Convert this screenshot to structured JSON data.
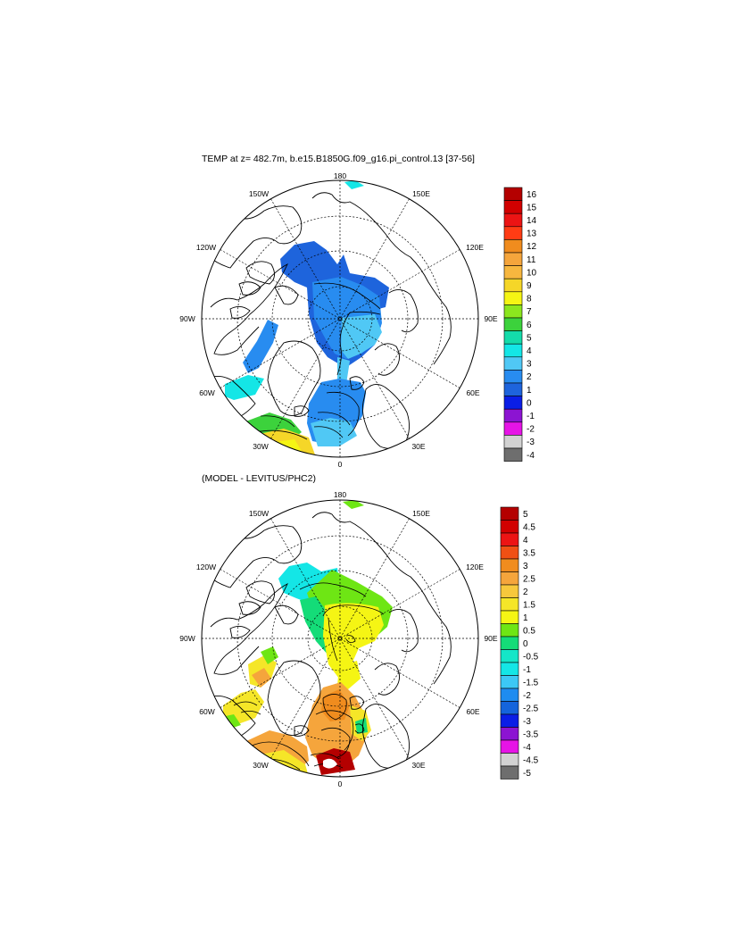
{
  "panels": [
    {
      "title": "TEMP at z= 482.7m, b.e15.B1850G.f09_g16.pi_control.13 [37-56]",
      "lon_labels": [
        "180",
        "150E",
        "120E",
        "90E",
        "60E",
        "30E",
        "0",
        "30W",
        "60W",
        "90W",
        "120W",
        "150W"
      ],
      "colorbar": {
        "labels": [
          "16",
          "15",
          "14",
          "13",
          "12",
          "11",
          "10",
          "9",
          "8",
          "7",
          "6",
          "5",
          "4",
          "3",
          "2",
          "1",
          "0",
          "-1",
          "-2",
          "-3",
          "-4"
        ],
        "colors": [
          "#b40000",
          "#d20000",
          "#ec1414",
          "#ff3c14",
          "#f08c1e",
          "#f5a53c",
          "#f7b73f",
          "#f5d628",
          "#f5f514",
          "#8ce61e",
          "#3cd23c",
          "#14dcaa",
          "#14e6e6",
          "#50c8f5",
          "#288cf0",
          "#1e64dc",
          "#0a1ee6",
          "#8c14d2",
          "#e614e6",
          "#d2d2d2",
          "#6e6e6e"
        ]
      }
    },
    {
      "title": "(MODEL - LEVITUS/PHC2)",
      "lon_labels": [
        "180",
        "150E",
        "120E",
        "90E",
        "60E",
        "30E",
        "0",
        "30W",
        "60W",
        "90W",
        "120W",
        "150W"
      ],
      "colorbar": {
        "labels": [
          "5",
          "4.5",
          "4",
          "3.5",
          "3",
          "2.5",
          "2",
          "1.5",
          "1",
          "0.5",
          "0",
          "-0.5",
          "-1",
          "-1.5",
          "-2",
          "-2.5",
          "-3",
          "-3.5",
          "-4",
          "-4.5",
          "-5"
        ],
        "colors": [
          "#b40000",
          "#d20000",
          "#ec1414",
          "#f05014",
          "#f08c1e",
          "#f5a53c",
          "#f7c83c",
          "#f5e628",
          "#f5f514",
          "#6ee614",
          "#14dc78",
          "#14e6c8",
          "#14e6e6",
          "#3cc8f5",
          "#1e8cf0",
          "#1464dc",
          "#0a1ee6",
          "#8c14d2",
          "#e614e6",
          "#d2d2d2",
          "#6e6e6e"
        ]
      }
    }
  ]
}
